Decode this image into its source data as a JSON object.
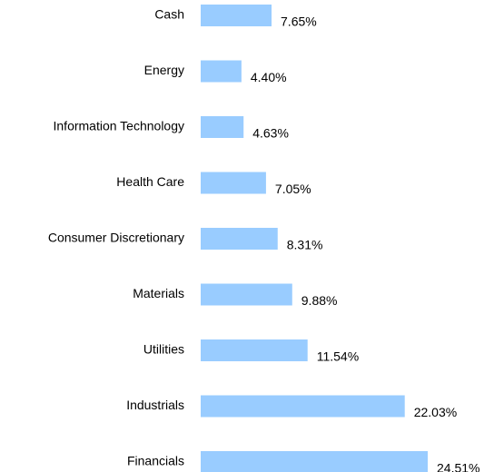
{
  "chart_data": {
    "type": "bar",
    "orientation": "horizontal",
    "categories": [
      "Cash",
      "Energy",
      "Information Technology",
      "Health Care",
      "Consumer Discretionary",
      "Materials",
      "Utilities",
      "Industrials",
      "Financials"
    ],
    "values": [
      7.65,
      4.4,
      4.63,
      7.05,
      8.31,
      9.88,
      11.54,
      22.03,
      24.51
    ],
    "value_labels": [
      "7.65%",
      "4.40%",
      "4.63%",
      "7.05%",
      "8.31%",
      "9.88%",
      "11.54%",
      "22.03%",
      "24.51%"
    ],
    "color": "#99ccff"
  }
}
